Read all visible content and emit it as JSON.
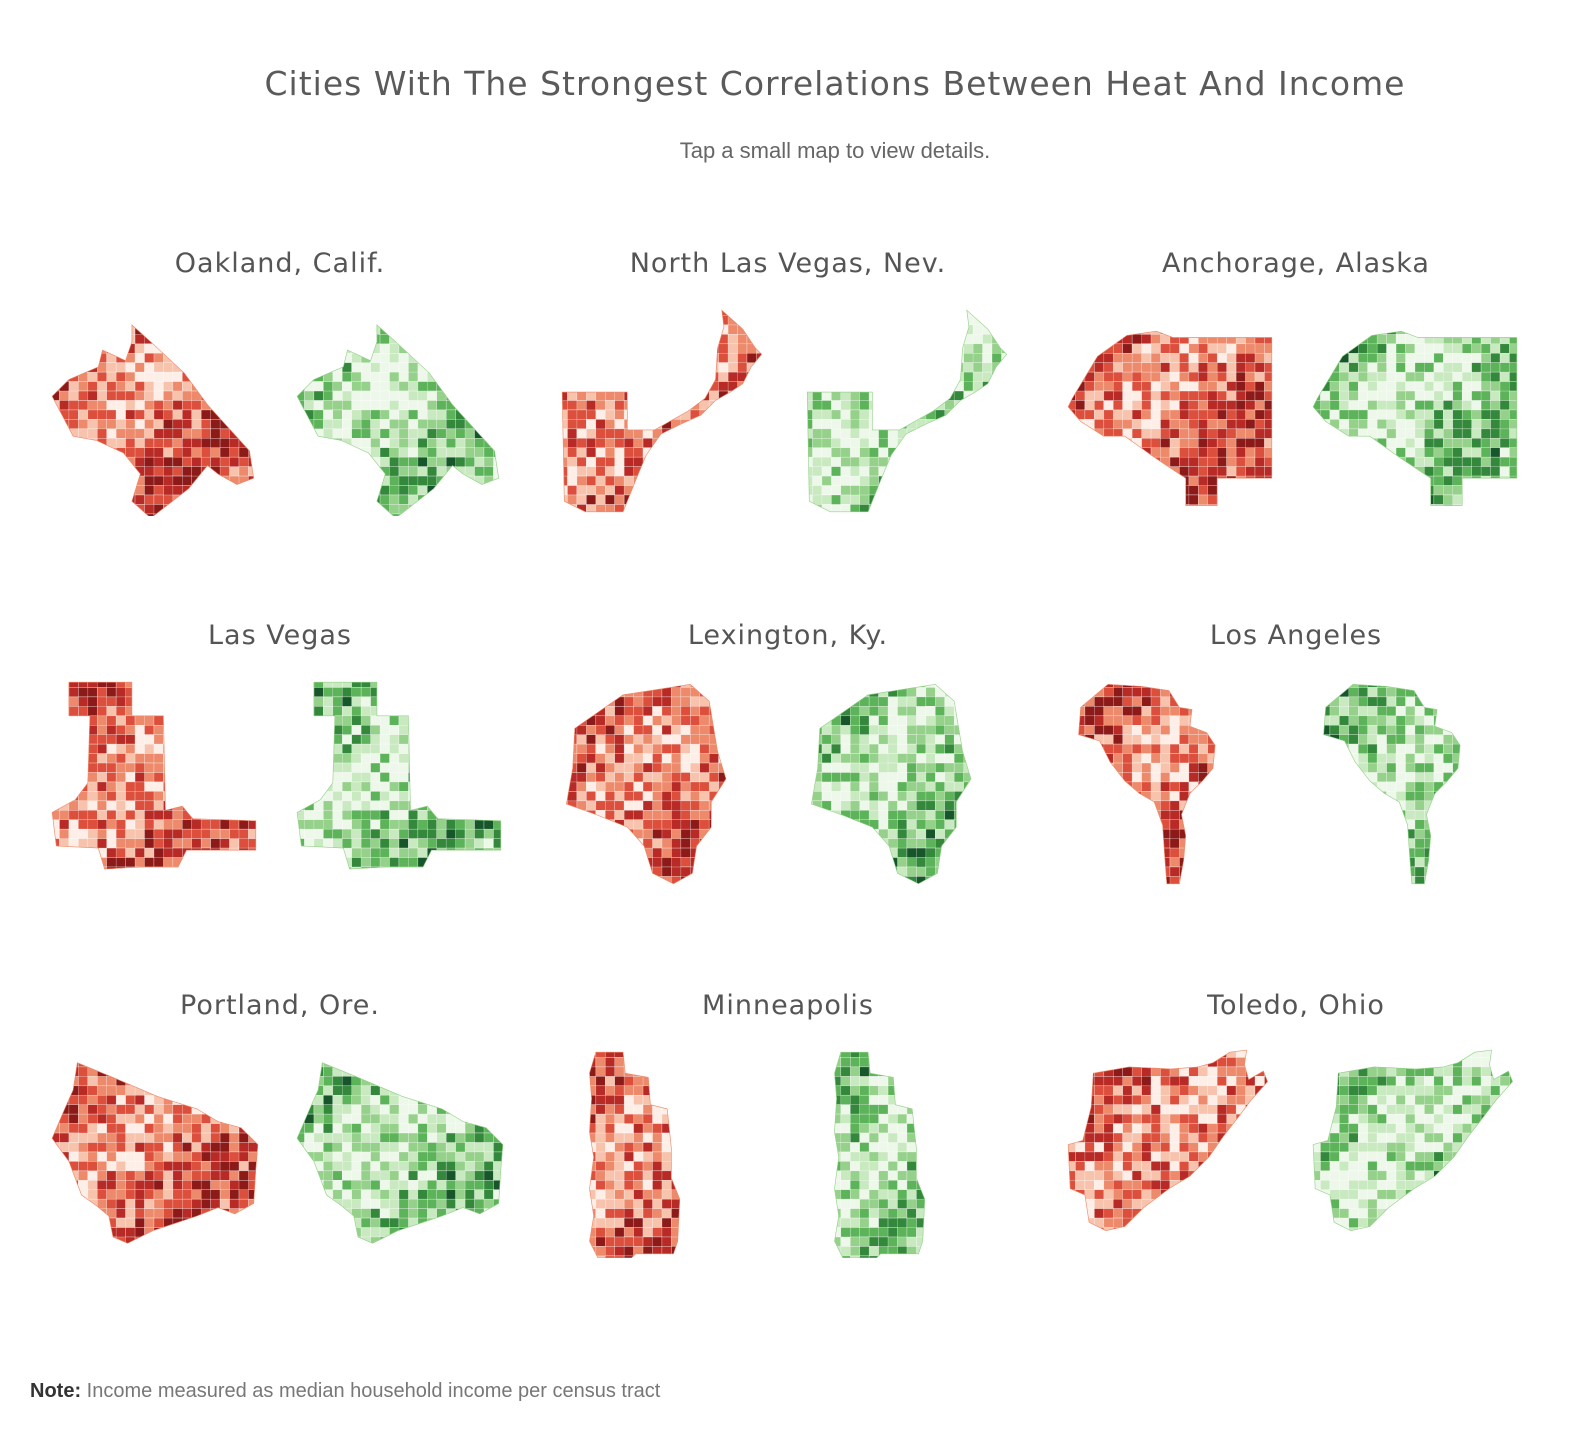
{
  "header": {
    "title": "Cities With The Strongest Correlations Between Heat And Income",
    "subtitle": "Tap a small map to view details."
  },
  "legend_colors": {
    "heat": [
      "#fdeee7",
      "#f8c3ad",
      "#ee8a6c",
      "#dc4f3c",
      "#b82a25",
      "#8c1a18"
    ],
    "income": [
      "#eef8ea",
      "#c9e9c0",
      "#95d18a",
      "#5db35a",
      "#33883c",
      "#17562a"
    ]
  },
  "cities": [
    {
      "name": "Oakland, Calif.",
      "shape": "oakland"
    },
    {
      "name": "North Las Vegas, Nev.",
      "shape": "nlv"
    },
    {
      "name": "Anchorage, Alaska",
      "shape": "anchorage"
    },
    {
      "name": "Las Vegas",
      "shape": "lasvegas"
    },
    {
      "name": "Lexington, Ky.",
      "shape": "lexington"
    },
    {
      "name": "Los Angeles",
      "shape": "losangeles"
    },
    {
      "name": "Portland, Ore.",
      "shape": "portland"
    },
    {
      "name": "Minneapolis",
      "shape": "minneapolis"
    },
    {
      "name": "Toledo, Ohio",
      "shape": "toledo"
    }
  ],
  "note": {
    "label": "Note:",
    "text": "Income measured as median household income per census tract"
  }
}
